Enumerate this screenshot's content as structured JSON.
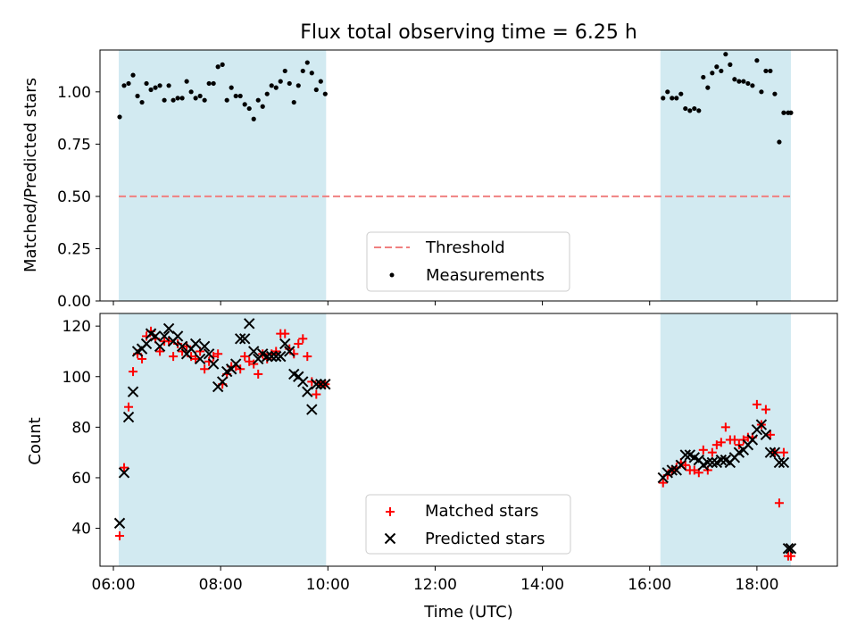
{
  "figure": {
    "title": "Flux total observing time = 6.25 h",
    "xlabel": "Time (UTC)"
  },
  "colors": {
    "shade": "#add8e6",
    "threshold": "#f08080",
    "measurement": "#000000",
    "matched": "#ff0000",
    "predicted": "#000000"
  },
  "chart_data": [
    {
      "type": "scatter",
      "panel": "top",
      "ylabel": "Matched/Predicted stars",
      "xlim": [
        "05:45",
        "19:30"
      ],
      "ylim": [
        0,
        1.2
      ],
      "y_ticks": [
        0.0,
        0.25,
        0.5,
        0.75,
        1.0
      ],
      "y_tick_labels": [
        "0.00",
        "0.25",
        "0.50",
        "0.75",
        "1.00"
      ],
      "grid": false,
      "legend_position": "bottom-center",
      "shaded_spans": [
        [
          "06:06",
          "09:58"
        ],
        [
          "16:12",
          "18:38"
        ]
      ],
      "threshold": {
        "name": "Threshold",
        "y": 0.5,
        "x_range": [
          "06:06",
          "18:38"
        ],
        "style": "dashed"
      },
      "series": [
        {
          "name": "Measurements",
          "marker": "dot",
          "x": [
            "06:07",
            "06:12",
            "06:17",
            "06:22",
            "06:27",
            "06:32",
            "06:37",
            "06:42",
            "06:47",
            "06:52",
            "06:57",
            "07:02",
            "07:07",
            "07:12",
            "07:17",
            "07:22",
            "07:27",
            "07:32",
            "07:37",
            "07:42",
            "07:47",
            "07:52",
            "07:57",
            "08:02",
            "08:07",
            "08:12",
            "08:17",
            "08:22",
            "08:27",
            "08:32",
            "08:37",
            "08:42",
            "08:47",
            "08:52",
            "08:57",
            "09:02",
            "09:07",
            "09:12",
            "09:17",
            "09:22",
            "09:27",
            "09:32",
            "09:37",
            "09:42",
            "09:47",
            "09:52",
            "09:57",
            "16:15",
            "16:20",
            "16:25",
            "16:30",
            "16:35",
            "16:40",
            "16:45",
            "16:50",
            "16:55",
            "17:00",
            "17:05",
            "17:10",
            "17:15",
            "17:20",
            "17:25",
            "17:30",
            "17:35",
            "17:40",
            "17:45",
            "17:50",
            "17:55",
            "18:00",
            "18:05",
            "18:10",
            "18:15",
            "18:20",
            "18:25",
            "18:30",
            "18:35",
            "18:38"
          ],
          "y": [
            0.88,
            1.03,
            1.04,
            1.08,
            0.98,
            0.95,
            1.04,
            1.01,
            1.02,
            1.03,
            0.96,
            1.03,
            0.96,
            0.97,
            0.97,
            1.05,
            1.0,
            0.97,
            0.98,
            0.96,
            1.04,
            1.04,
            1.12,
            1.13,
            0.96,
            1.02,
            0.98,
            0.98,
            0.94,
            0.92,
            0.87,
            0.96,
            0.93,
            0.99,
            1.03,
            1.02,
            1.05,
            1.1,
            1.04,
            0.95,
            1.03,
            1.1,
            1.14,
            1.09,
            1.01,
            1.05,
            0.99,
            0.97,
            1.0,
            0.97,
            0.97,
            0.99,
            0.92,
            0.91,
            0.92,
            0.91,
            1.07,
            1.02,
            1.09,
            1.12,
            1.1,
            1.18,
            1.13,
            1.06,
            1.05,
            1.05,
            1.04,
            1.03,
            1.15,
            1.0,
            1.1,
            1.1,
            0.99,
            0.76,
            0.9,
            0.9,
            0.9
          ]
        }
      ]
    },
    {
      "type": "scatter",
      "panel": "bottom",
      "ylabel": "Count",
      "xlim": [
        "05:45",
        "19:30"
      ],
      "ylim": [
        25,
        125
      ],
      "y_ticks": [
        40,
        60,
        80,
        100,
        120
      ],
      "x_ticks": [
        "06:00",
        "08:00",
        "10:00",
        "12:00",
        "14:00",
        "16:00",
        "18:00"
      ],
      "grid": false,
      "legend_position": "bottom-center",
      "shaded_spans": [
        [
          "06:06",
          "09:58"
        ],
        [
          "16:12",
          "18:38"
        ]
      ],
      "series": [
        {
          "name": "Matched stars",
          "marker": "plus",
          "x": [
            "06:07",
            "06:12",
            "06:17",
            "06:22",
            "06:27",
            "06:32",
            "06:37",
            "06:42",
            "06:47",
            "06:52",
            "06:57",
            "07:02",
            "07:07",
            "07:12",
            "07:17",
            "07:22",
            "07:27",
            "07:32",
            "07:37",
            "07:42",
            "07:47",
            "07:52",
            "07:57",
            "08:02",
            "08:07",
            "08:12",
            "08:17",
            "08:22",
            "08:27",
            "08:32",
            "08:37",
            "08:42",
            "08:47",
            "08:52",
            "08:57",
            "09:02",
            "09:07",
            "09:12",
            "09:17",
            "09:22",
            "09:27",
            "09:32",
            "09:37",
            "09:42",
            "09:47",
            "09:52",
            "09:57",
            "16:15",
            "16:20",
            "16:25",
            "16:30",
            "16:35",
            "16:40",
            "16:45",
            "16:50",
            "16:55",
            "17:00",
            "17:05",
            "17:10",
            "17:15",
            "17:20",
            "17:25",
            "17:30",
            "17:35",
            "17:40",
            "17:45",
            "17:50",
            "17:55",
            "18:00",
            "18:05",
            "18:10",
            "18:15",
            "18:20",
            "18:25",
            "18:30",
            "18:35",
            "18:38"
          ],
          "y": [
            37,
            64,
            88,
            102,
            109,
            107,
            116,
            118,
            115,
            110,
            114,
            114,
            108,
            113,
            110,
            112,
            108,
            107,
            110,
            103,
            106,
            108,
            109,
            97,
            101,
            104,
            104,
            103,
            108,
            106,
            105,
            101,
            109,
            107,
            109,
            110,
            117,
            117,
            111,
            109,
            113,
            115,
            108,
            98,
            93,
            97,
            97,
            58,
            61,
            63,
            64,
            66,
            65,
            63,
            63,
            62,
            71,
            63,
            70,
            73,
            74,
            80,
            75,
            75,
            73,
            75,
            76,
            76,
            89,
            81,
            87,
            77,
            70,
            50,
            70,
            29,
            29
          ]
        },
        {
          "name": "Predicted stars",
          "marker": "x",
          "x": [
            "06:07",
            "06:12",
            "06:17",
            "06:22",
            "06:27",
            "06:32",
            "06:37",
            "06:42",
            "06:47",
            "06:52",
            "06:57",
            "07:02",
            "07:07",
            "07:12",
            "07:17",
            "07:22",
            "07:27",
            "07:32",
            "07:37",
            "07:42",
            "07:47",
            "07:52",
            "07:57",
            "08:02",
            "08:07",
            "08:12",
            "08:17",
            "08:22",
            "08:27",
            "08:32",
            "08:37",
            "08:42",
            "08:47",
            "08:52",
            "08:57",
            "09:02",
            "09:07",
            "09:12",
            "09:17",
            "09:22",
            "09:27",
            "09:32",
            "09:37",
            "09:42",
            "09:47",
            "09:52",
            "09:57",
            "16:15",
            "16:20",
            "16:25",
            "16:30",
            "16:35",
            "16:40",
            "16:45",
            "16:50",
            "16:55",
            "17:00",
            "17:05",
            "17:10",
            "17:15",
            "17:20",
            "17:25",
            "17:30",
            "17:35",
            "17:40",
            "17:45",
            "17:50",
            "17:55",
            "18:00",
            "18:05",
            "18:10",
            "18:15",
            "18:20",
            "18:25",
            "18:30",
            "18:35",
            "18:38"
          ],
          "y": [
            42,
            62,
            84,
            94,
            110,
            111,
            113,
            117,
            116,
            112,
            116,
            119,
            114,
            116,
            112,
            109,
            111,
            113,
            107,
            112,
            109,
            105,
            96,
            98,
            102,
            103,
            105,
            115,
            115,
            121,
            110,
            107,
            109,
            108,
            108,
            108,
            108,
            113,
            110,
            101,
            100,
            98,
            94,
            87,
            97,
            97,
            97,
            60,
            62,
            63,
            63,
            65,
            69,
            69,
            68,
            67,
            65,
            66,
            66,
            66,
            67,
            67,
            66,
            68,
            70,
            71,
            73,
            75,
            79,
            81,
            77,
            70,
            70,
            66,
            66,
            32,
            32
          ]
        }
      ]
    }
  ]
}
